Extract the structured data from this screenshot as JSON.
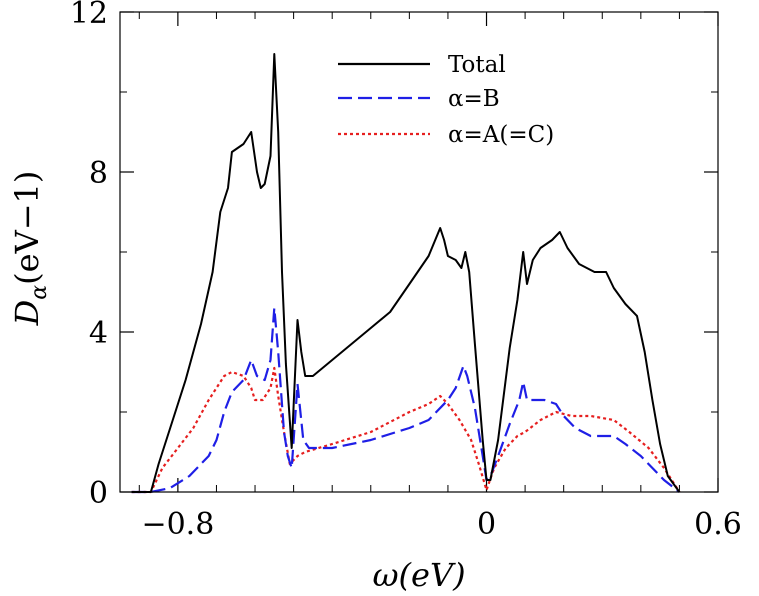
{
  "chart_data": {
    "type": "line",
    "xlabel": "ω(eV)",
    "ylabel_main": "D",
    "ylabel_sub": "α",
    "ylabel_unit": "(eV−1)",
    "xlim": [
      -0.95,
      0.6
    ],
    "ylim": [
      0,
      12
    ],
    "xticks": [
      -0.8,
      0,
      0.6
    ],
    "xtick_labels": [
      "−0.8",
      "0",
      "0.6"
    ],
    "xminor": [
      -0.9,
      -0.7,
      -0.6,
      -0.5,
      -0.4,
      -0.3,
      -0.2,
      -0.1,
      0.1,
      0.2,
      0.3,
      0.4,
      0.5
    ],
    "yticks": [
      0,
      4,
      8,
      12
    ],
    "ytick_labels": [
      "0",
      "4",
      "8",
      "12"
    ],
    "yminor": [
      2,
      6,
      10
    ],
    "legend_position": "top-right",
    "series": [
      {
        "name": "Total",
        "color": "#000000",
        "dash": "solid",
        "points": [
          [
            -0.92,
            0
          ],
          [
            -0.87,
            0
          ],
          [
            -0.85,
            0.7
          ],
          [
            -0.82,
            1.6
          ],
          [
            -0.78,
            2.8
          ],
          [
            -0.74,
            4.2
          ],
          [
            -0.71,
            5.5
          ],
          [
            -0.69,
            7.0
          ],
          [
            -0.67,
            7.6
          ],
          [
            -0.66,
            8.5
          ],
          [
            -0.63,
            8.7
          ],
          [
            -0.61,
            9.0
          ],
          [
            -0.595,
            8.0
          ],
          [
            -0.585,
            7.6
          ],
          [
            -0.575,
            7.7
          ],
          [
            -0.56,
            8.4
          ],
          [
            -0.55,
            10.95
          ],
          [
            -0.54,
            9.0
          ],
          [
            -0.53,
            5.5
          ],
          [
            -0.52,
            3.2
          ],
          [
            -0.505,
            1.1
          ],
          [
            -0.49,
            4.3
          ],
          [
            -0.48,
            3.5
          ],
          [
            -0.47,
            2.9
          ],
          [
            -0.45,
            2.9
          ],
          [
            -0.4,
            3.3
          ],
          [
            -0.35,
            3.7
          ],
          [
            -0.3,
            4.1
          ],
          [
            -0.25,
            4.5
          ],
          [
            -0.2,
            5.2
          ],
          [
            -0.15,
            5.9
          ],
          [
            -0.12,
            6.6
          ],
          [
            -0.11,
            6.3
          ],
          [
            -0.1,
            5.9
          ],
          [
            -0.08,
            5.8
          ],
          [
            -0.065,
            5.6
          ],
          [
            -0.055,
            6.0
          ],
          [
            -0.045,
            5.5
          ],
          [
            -0.03,
            3.7
          ],
          [
            -0.01,
            1.3
          ],
          [
            0,
            0.3
          ],
          [
            0.01,
            0.3
          ],
          [
            0.03,
            1.3
          ],
          [
            0.06,
            3.6
          ],
          [
            0.08,
            4.8
          ],
          [
            0.095,
            6.0
          ],
          [
            0.105,
            5.2
          ],
          [
            0.12,
            5.8
          ],
          [
            0.14,
            6.1
          ],
          [
            0.17,
            6.3
          ],
          [
            0.19,
            6.5
          ],
          [
            0.21,
            6.1
          ],
          [
            0.24,
            5.7
          ],
          [
            0.26,
            5.6
          ],
          [
            0.28,
            5.5
          ],
          [
            0.31,
            5.5
          ],
          [
            0.33,
            5.1
          ],
          [
            0.36,
            4.7
          ],
          [
            0.39,
            4.4
          ],
          [
            0.41,
            3.5
          ],
          [
            0.43,
            2.3
          ],
          [
            0.45,
            1.2
          ],
          [
            0.47,
            0.4
          ],
          [
            0.5,
            0
          ]
        ]
      },
      {
        "name": "α=B",
        "color": "#1f1fe6",
        "dash": "dashed",
        "points": [
          [
            -0.92,
            0
          ],
          [
            -0.87,
            0
          ],
          [
            -0.82,
            0.1
          ],
          [
            -0.77,
            0.4
          ],
          [
            -0.72,
            0.9
          ],
          [
            -0.7,
            1.3
          ],
          [
            -0.68,
            2.0
          ],
          [
            -0.66,
            2.5
          ],
          [
            -0.63,
            2.8
          ],
          [
            -0.61,
            3.3
          ],
          [
            -0.595,
            2.9
          ],
          [
            -0.575,
            2.8
          ],
          [
            -0.56,
            3.3
          ],
          [
            -0.55,
            4.6
          ],
          [
            -0.54,
            3.5
          ],
          [
            -0.525,
            1.5
          ],
          [
            -0.515,
            0.9
          ],
          [
            -0.505,
            0.6
          ],
          [
            -0.49,
            2.7
          ],
          [
            -0.475,
            1.3
          ],
          [
            -0.46,
            1.1
          ],
          [
            -0.4,
            1.1
          ],
          [
            -0.3,
            1.3
          ],
          [
            -0.2,
            1.6
          ],
          [
            -0.15,
            1.8
          ],
          [
            -0.1,
            2.3
          ],
          [
            -0.08,
            2.6
          ],
          [
            -0.06,
            3.15
          ],
          [
            -0.05,
            2.9
          ],
          [
            -0.03,
            2.1
          ],
          [
            -0.01,
            0.9
          ],
          [
            0,
            0.3
          ],
          [
            0.01,
            0.4
          ],
          [
            0.03,
            0.9
          ],
          [
            0.06,
            1.7
          ],
          [
            0.085,
            2.3
          ],
          [
            0.095,
            2.75
          ],
          [
            0.105,
            2.3
          ],
          [
            0.12,
            2.3
          ],
          [
            0.15,
            2.3
          ],
          [
            0.18,
            2.2
          ],
          [
            0.2,
            1.9
          ],
          [
            0.23,
            1.6
          ],
          [
            0.27,
            1.4
          ],
          [
            0.33,
            1.4
          ],
          [
            0.36,
            1.2
          ],
          [
            0.4,
            0.9
          ],
          [
            0.43,
            0.6
          ],
          [
            0.46,
            0.3
          ],
          [
            0.5,
            0
          ]
        ]
      },
      {
        "name": "α=A(=C)",
        "color": "#e61f1f",
        "dash": "dotted",
        "points": [
          [
            -0.92,
            0
          ],
          [
            -0.87,
            0
          ],
          [
            -0.84,
            0.6
          ],
          [
            -0.8,
            1.1
          ],
          [
            -0.76,
            1.6
          ],
          [
            -0.72,
            2.3
          ],
          [
            -0.68,
            2.9
          ],
          [
            -0.66,
            3.0
          ],
          [
            -0.63,
            2.9
          ],
          [
            -0.61,
            2.6
          ],
          [
            -0.6,
            2.3
          ],
          [
            -0.58,
            2.3
          ],
          [
            -0.56,
            2.6
          ],
          [
            -0.55,
            3.1
          ],
          [
            -0.54,
            2.4
          ],
          [
            -0.525,
            1.5
          ],
          [
            -0.51,
            0.7
          ],
          [
            -0.49,
            0.9
          ],
          [
            -0.47,
            1.0
          ],
          [
            -0.4,
            1.2
          ],
          [
            -0.3,
            1.5
          ],
          [
            -0.2,
            2.0
          ],
          [
            -0.15,
            2.2
          ],
          [
            -0.12,
            2.4
          ],
          [
            -0.1,
            2.2
          ],
          [
            -0.07,
            1.8
          ],
          [
            -0.04,
            1.3
          ],
          [
            -0.02,
            0.7
          ],
          [
            0,
            0.05
          ],
          [
            0.02,
            0.6
          ],
          [
            0.05,
            1.1
          ],
          [
            0.08,
            1.4
          ],
          [
            0.1,
            1.5
          ],
          [
            0.14,
            1.8
          ],
          [
            0.18,
            2.0
          ],
          [
            0.22,
            1.9
          ],
          [
            0.27,
            1.9
          ],
          [
            0.33,
            1.8
          ],
          [
            0.37,
            1.5
          ],
          [
            0.42,
            1.1
          ],
          [
            0.46,
            0.6
          ],
          [
            0.5,
            0
          ]
        ]
      }
    ]
  }
}
